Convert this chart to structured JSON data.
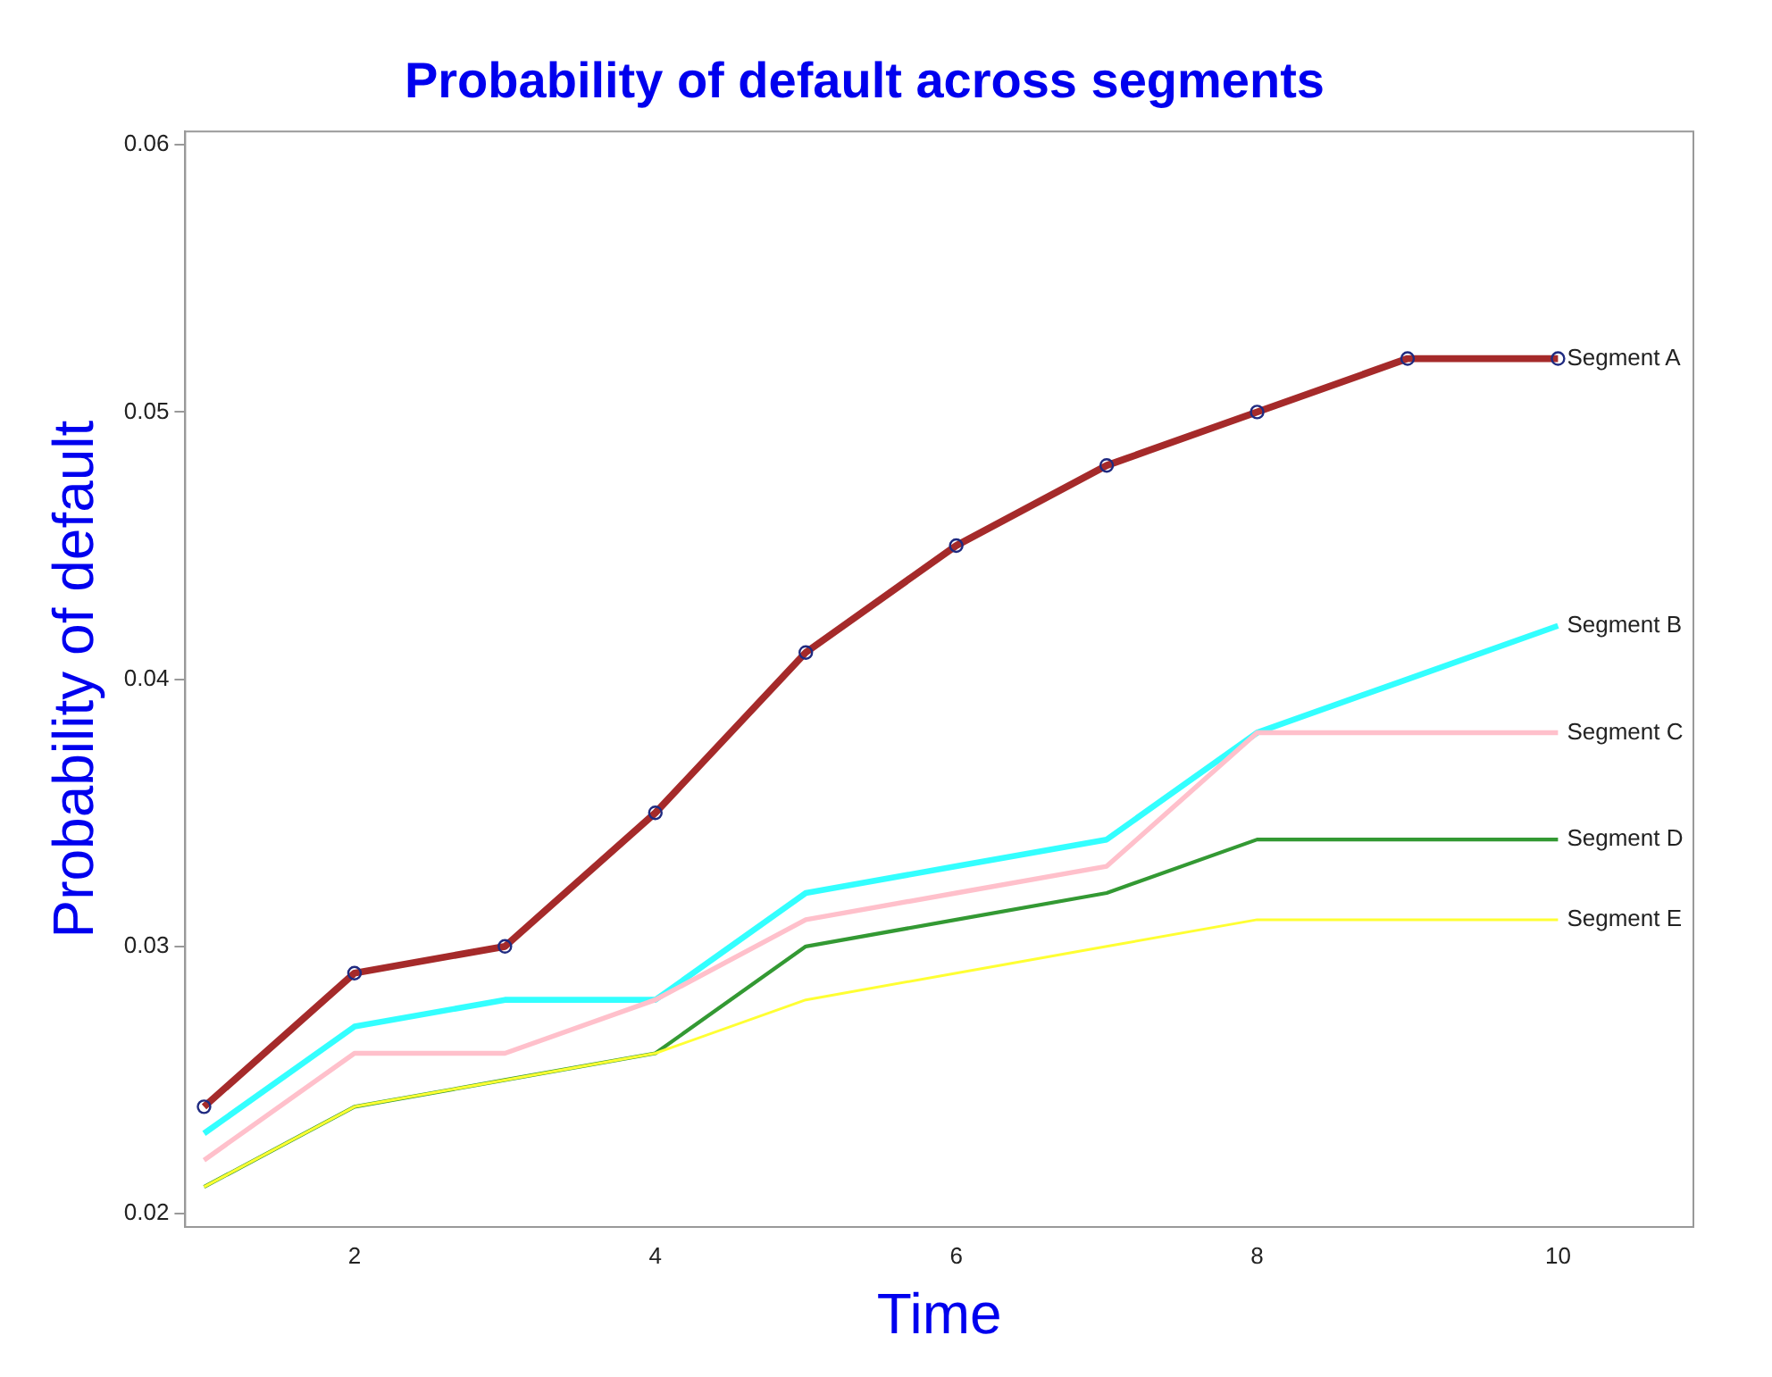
{
  "chart_data": {
    "type": "line",
    "title": "Probability of default across segments",
    "xlabel": "Time",
    "ylabel": "Probability of default",
    "x": [
      1,
      2,
      3,
      4,
      5,
      6,
      7,
      8,
      9,
      10
    ],
    "xlim": [
      0.875,
      10.9
    ],
    "xticks": [
      2,
      4,
      6,
      8,
      10
    ],
    "ylim": [
      0.0195,
      0.0605
    ],
    "yticks": [
      0.02,
      0.03,
      0.04,
      0.05,
      0.06
    ],
    "grid": false,
    "legend": false,
    "series": [
      {
        "name": "Segment A",
        "color": "#a52a2a",
        "marker": "circle",
        "values": [
          0.024,
          0.029,
          0.03,
          0.035,
          0.041,
          0.045,
          0.048,
          0.05,
          0.052,
          0.052
        ]
      },
      {
        "name": "Segment B",
        "color": "#33ffff",
        "marker": "none",
        "values": [
          0.023,
          0.027,
          0.028,
          0.028,
          0.032,
          0.033,
          0.034,
          0.038,
          0.04,
          0.042
        ]
      },
      {
        "name": "Segment C",
        "color": "#ffc0cb",
        "marker": "none",
        "values": [
          0.022,
          0.026,
          0.026,
          0.028,
          0.031,
          0.032,
          0.033,
          0.038,
          0.038,
          0.038
        ]
      },
      {
        "name": "Segment D",
        "color": "#339933",
        "marker": "none",
        "values": [
          0.021,
          0.024,
          0.025,
          0.026,
          0.03,
          0.031,
          0.032,
          0.034,
          0.034,
          0.034
        ]
      },
      {
        "name": "Segment E",
        "color": "#ffff33",
        "marker": "none",
        "values": [
          0.021,
          0.024,
          0.025,
          0.026,
          0.028,
          0.029,
          0.03,
          0.031,
          0.031,
          0.031
        ]
      }
    ]
  }
}
